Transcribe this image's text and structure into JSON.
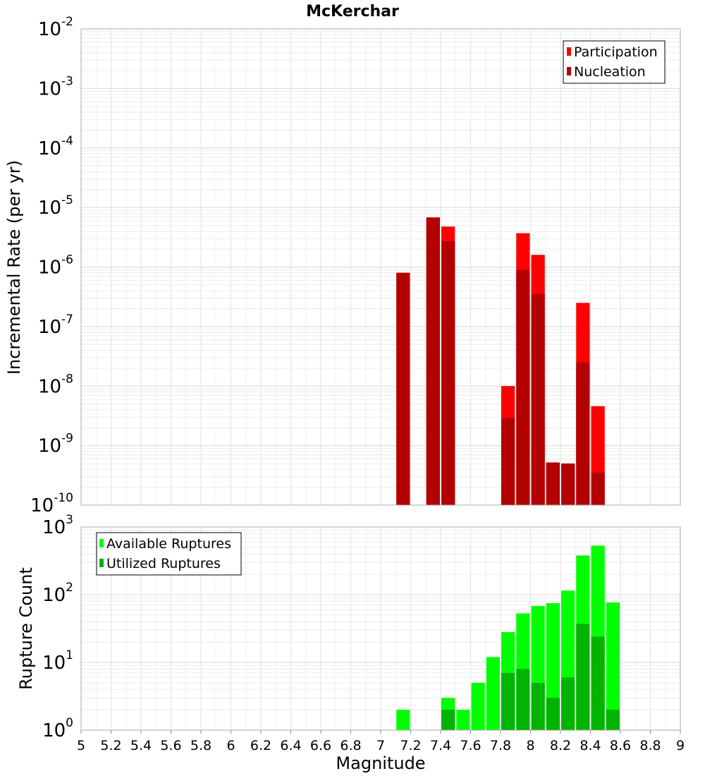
{
  "chart_data": [
    {
      "type": "bar",
      "title": "McKerchar",
      "xlabel": "",
      "ylabel": "Incremental Rate (per yr)",
      "yscale": "log",
      "ylim_exponents": [
        -10,
        -2
      ],
      "xlim": [
        5,
        9
      ],
      "bin_width": 0.1,
      "grid": true,
      "legend_position": "top-right",
      "series": [
        {
          "name": "Participation",
          "color": "#ff0000",
          "x": [
            7.15,
            7.35,
            7.45,
            7.85,
            7.95,
            8.05,
            8.15,
            8.25,
            8.35,
            8.45
          ],
          "values": [
            8e-07,
            6.8e-06,
            4.8e-06,
            1e-08,
            3.7e-06,
            1.6e-06,
            5.2e-10,
            5e-10,
            2.5e-07,
            4.6e-09
          ]
        },
        {
          "name": "Nucleation",
          "color": "#b30000",
          "x": [
            7.15,
            7.35,
            7.45,
            7.85,
            7.95,
            8.05,
            8.15,
            8.25,
            8.35,
            8.45
          ],
          "values": [
            8e-07,
            6.8e-06,
            2.7e-06,
            2.9e-09,
            9e-07,
            3.5e-07,
            5.2e-10,
            5e-10,
            2.5e-08,
            3.5e-10
          ]
        }
      ]
    },
    {
      "type": "bar",
      "title": "",
      "xlabel": "Magnitude",
      "ylabel": "Rupture Count",
      "yscale": "log",
      "ylim_exponents": [
        0,
        3
      ],
      "xlim": [
        5,
        9
      ],
      "bin_width": 0.1,
      "grid": true,
      "legend_position": "top-left",
      "series": [
        {
          "name": "Available Ruptures",
          "color": "#00ff00",
          "x": [
            7.15,
            7.35,
            7.45,
            7.55,
            7.65,
            7.75,
            7.85,
            7.95,
            8.05,
            8.15,
            8.25,
            8.35,
            8.45,
            8.55
          ],
          "values": [
            2,
            1,
            3,
            2,
            5,
            12,
            28,
            53,
            68,
            75,
            115,
            380,
            530,
            77
          ]
        },
        {
          "name": "Utilized Ruptures",
          "color": "#00b300",
          "x": [
            7.15,
            7.35,
            7.45,
            7.85,
            7.95,
            8.05,
            8.15,
            8.25,
            8.35,
            8.45,
            8.55
          ],
          "values": [
            1,
            1,
            2,
            7,
            8,
            5,
            3,
            6,
            37,
            24,
            2
          ]
        }
      ],
      "x_ticks": [
        "5",
        "5.2",
        "5.4",
        "5.6",
        "5.8",
        "6",
        "6.2",
        "6.4",
        "6.6",
        "6.8",
        "7",
        "7.2",
        "7.4",
        "7.6",
        "7.8",
        "8",
        "8.2",
        "8.4",
        "8.6",
        "8.8",
        "9"
      ]
    }
  ]
}
